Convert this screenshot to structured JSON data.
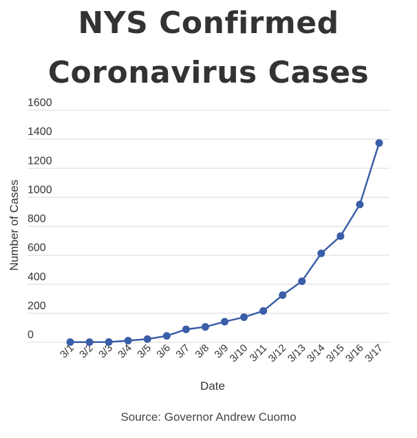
{
  "chart_data": {
    "type": "line",
    "title_line1": "NYS Confirmed",
    "title_line2": "Coronavirus Cases",
    "xlabel": "Date",
    "ylabel": "Number of Cases",
    "source": "Source: Governor Andrew Cuomo",
    "categories": [
      "3/1",
      "3/2",
      "3/3",
      "3/4",
      "3/5",
      "3/6",
      "3/7",
      "3/8",
      "3/9",
      "3/10",
      "3/11",
      "3/12",
      "3/13",
      "3/14",
      "3/15",
      "3/16",
      "3/17"
    ],
    "series": [
      {
        "values": [
          1,
          1,
          2,
          11,
          22,
          44,
          89,
          106,
          142,
          173,
          216,
          325,
          421,
          613,
          732,
          950,
          1374
        ]
      }
    ],
    "y_ticks": [
      0,
      200,
      400,
      600,
      800,
      1000,
      1200,
      1400,
      1600
    ],
    "ylim": [
      0,
      1600
    ],
    "grid": true,
    "line_color": "#3a5ea8",
    "grid_color": "#d9d9d9"
  }
}
